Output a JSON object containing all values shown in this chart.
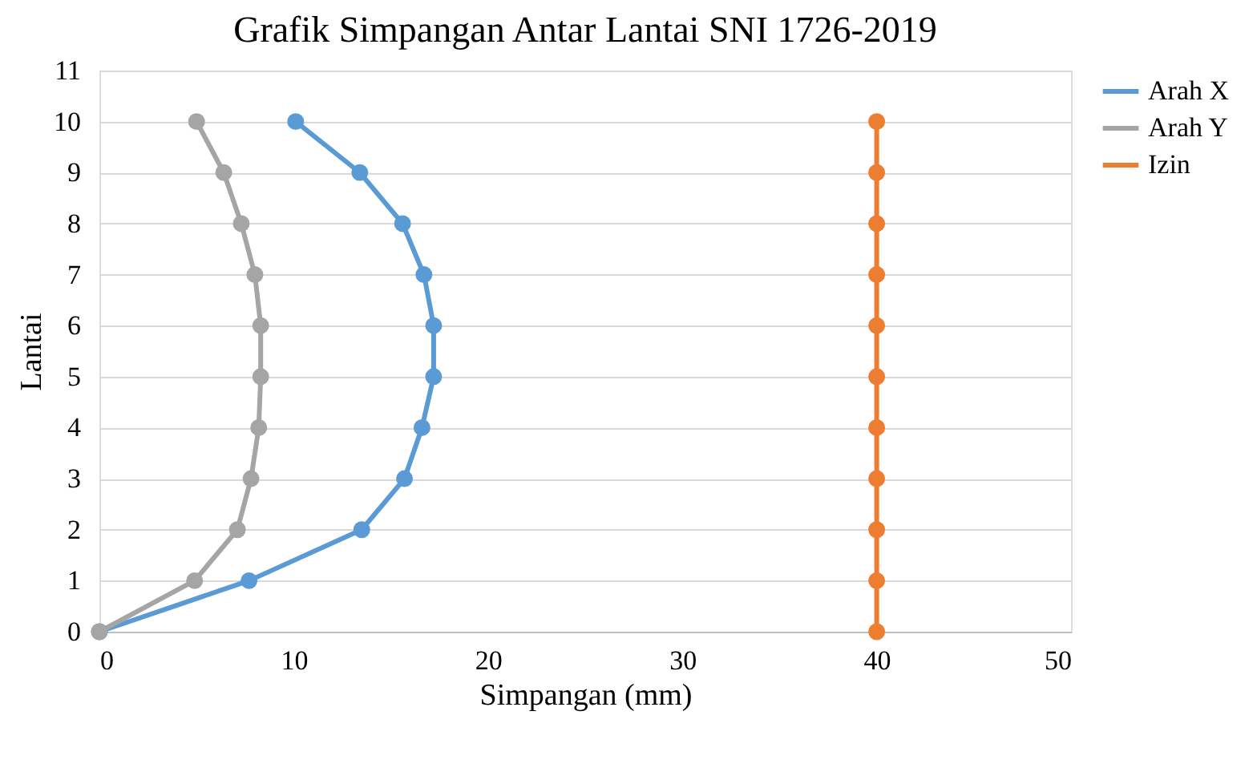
{
  "chart_data": {
    "type": "line",
    "title": "Grafik Simpangan Antar Lantai SNI 1726-2019",
    "xlabel": "Simpangan (mm)",
    "ylabel": "Lantai",
    "series": [
      {
        "name": "Arah X",
        "color": "#5b9bd5",
        "x": [
          0,
          7.7,
          13.5,
          15.7,
          16.6,
          17.2,
          17.2,
          16.7,
          15.6,
          13.4,
          10.1
        ],
        "values": [
          0,
          1,
          2,
          3,
          4,
          5,
          6,
          7,
          8,
          9,
          10
        ]
      },
      {
        "name": "Arah Y",
        "color": "#a5a5a5",
        "x": [
          0,
          4.9,
          7.1,
          7.8,
          8.2,
          8.3,
          8.3,
          8.0,
          7.3,
          6.4,
          5.0
        ],
        "values": [
          0,
          1,
          2,
          3,
          4,
          5,
          6,
          7,
          8,
          9,
          10
        ]
      },
      {
        "name": "Izin",
        "color": "#ed7d31",
        "x": [
          40,
          40,
          40,
          40,
          40,
          40,
          40,
          40,
          40,
          40,
          40
        ],
        "values": [
          0,
          1,
          2,
          3,
          4,
          5,
          6,
          7,
          8,
          9,
          10
        ]
      }
    ],
    "xlim": [
      0,
      50
    ],
    "xticks": [
      0,
      10,
      20,
      30,
      40,
      50
    ],
    "ylim": [
      0,
      11
    ],
    "yticks": [
      0,
      1,
      2,
      3,
      4,
      5,
      6,
      7,
      8,
      9,
      10,
      11
    ],
    "grid": "y",
    "legend": "right",
    "marker": "circle",
    "line_style": "solid"
  }
}
